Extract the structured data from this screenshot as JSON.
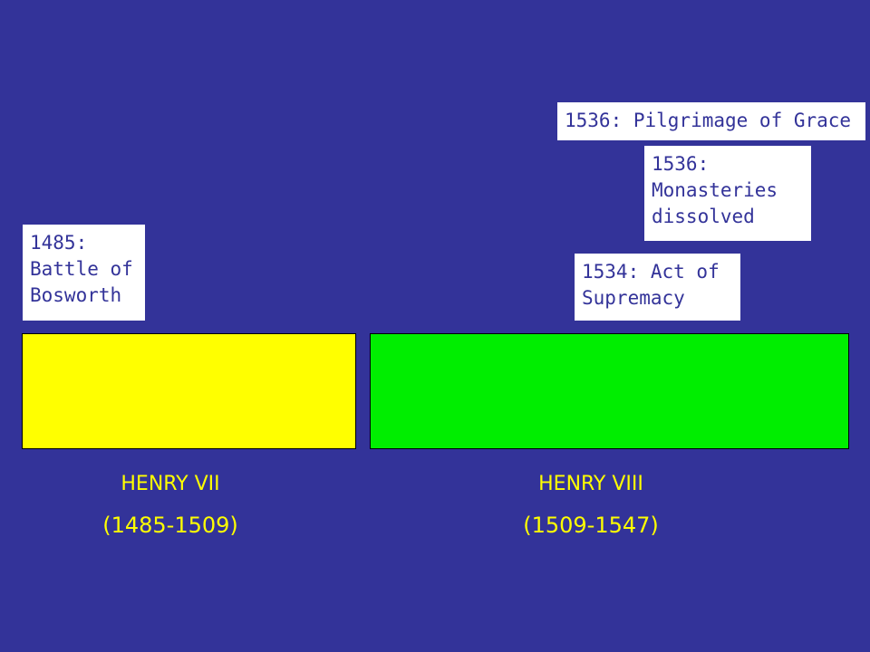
{
  "colors": {
    "background": "#333399",
    "henry_vii_bar": "#ffff00",
    "henry_viii_bar": "#00ee00",
    "label_text": "#ffff00",
    "event_text": "#333399",
    "event_box": "#ffffff"
  },
  "events": [
    {
      "text": "1536: Pilgrimage of Grace"
    },
    {
      "text": "1536:\nMonasteries\ndissolved"
    },
    {
      "text": "1485:\nBattle of\nBosworth"
    },
    {
      "text": "1534: Act of\nSupremacy"
    }
  ],
  "monarchs": [
    {
      "name": "HENRY VII",
      "dates": "(1485-1509)"
    },
    {
      "name": "HENRY VIII",
      "dates": "(1509-1547)"
    }
  ]
}
